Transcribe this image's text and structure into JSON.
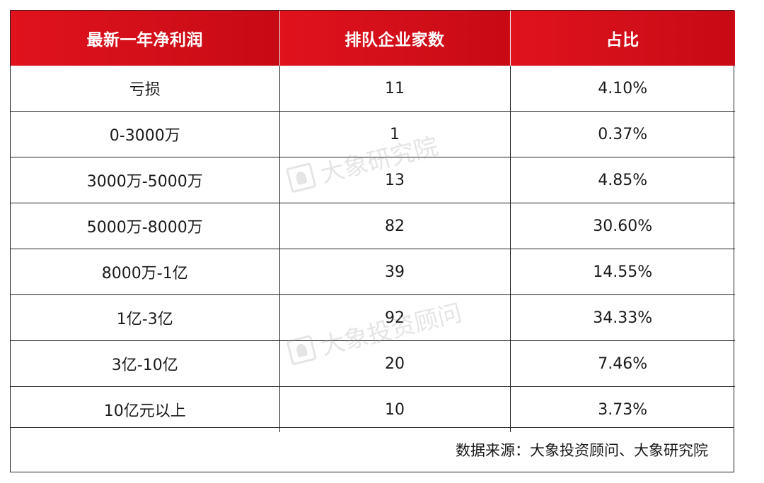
{
  "table": {
    "headers": [
      "最新一年净利润",
      "排队企业家数",
      "占比"
    ],
    "rows": [
      [
        "亏损",
        "11",
        "4.10%"
      ],
      [
        "0-3000万",
        "1",
        "0.37%"
      ],
      [
        "3000万-5000万",
        "13",
        "4.85%"
      ],
      [
        "5000万-8000万",
        "82",
        "30.60%"
      ],
      [
        "8000万-1亿",
        "39",
        "14.55%"
      ],
      [
        "1亿-3亿",
        "92",
        "34.33%"
      ],
      [
        "3亿-10亿",
        "20",
        "7.46%"
      ],
      [
        "10亿元以上",
        "10",
        "3.73%"
      ]
    ]
  },
  "footer": {
    "source": "数据来源：大象投资顾问、大象研究院"
  },
  "watermarks": [
    "大象研究院",
    "大象投资顾问"
  ],
  "colors": {
    "header_bg": "#d30f1a",
    "header_text": "#ffffff",
    "border": "#222222"
  }
}
